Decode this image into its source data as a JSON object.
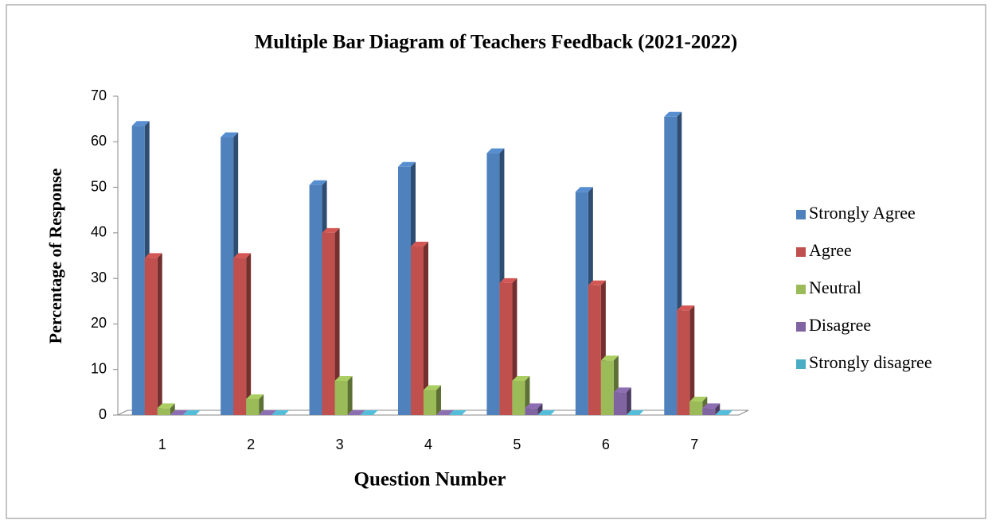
{
  "chart_data": {
    "type": "bar3d",
    "title": "Multiple Bar Diagram of Teachers Feedback (2021-2022)",
    "x_label": "Question Number",
    "y_label": "Percentage of Response",
    "categories": [
      "1",
      "2",
      "3",
      "4",
      "5",
      "6",
      "7"
    ],
    "series": [
      {
        "name": "Strongly Agree",
        "color": "#4f81bd",
        "values": [
          63.5,
          61,
          50.5,
          54.5,
          57.5,
          49,
          65.5
        ]
      },
      {
        "name": "Agree",
        "color": "#c0504d",
        "values": [
          34.5,
          34.5,
          40,
          37,
          29,
          28.5,
          23
        ]
      },
      {
        "name": "Neutral",
        "color": "#9bbb59",
        "values": [
          1.5,
          3.5,
          7.5,
          5.5,
          7.5,
          12,
          3
        ]
      },
      {
        "name": "Disagree",
        "color": "#8064a2",
        "values": [
          0,
          0,
          0,
          0,
          1.5,
          5,
          1.5
        ]
      },
      {
        "name": "Strongly disagree",
        "color": "#4bacc6",
        "values": [
          0,
          0,
          0,
          0,
          0,
          0,
          0
        ]
      }
    ],
    "ylim": [
      0,
      70
    ],
    "yticks": [
      0,
      10,
      20,
      30,
      40,
      50,
      60,
      70
    ],
    "legend": "right"
  }
}
